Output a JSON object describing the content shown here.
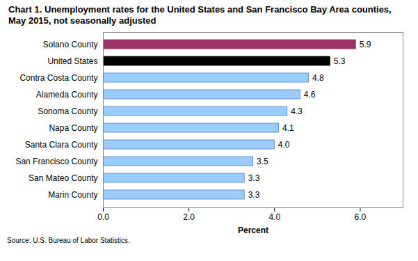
{
  "chart_data": {
    "type": "bar",
    "orientation": "horizontal",
    "title": "Chart 1. Unemployment rates for the United States and San Francisco Bay Area counties, May 2015, not seasonally adjusted",
    "caption": "Source: U.S. Bureau of Labor Statistics.",
    "x_label": "Percent",
    "categories": [
      "Solano County",
      "United States",
      "Contra Costa County",
      "Alameda County",
      "Sonoma County",
      "Napa County",
      "Santa Clara County",
      "San Francisco County",
      "San Mateo County",
      "Marin County"
    ],
    "values": [
      5.9,
      5.3,
      4.8,
      4.6,
      4.3,
      4.1,
      4.0,
      3.5,
      3.3,
      3.3
    ],
    "value_labels": [
      "5.9",
      "5.3",
      "4.8",
      "4.6",
      "4.3",
      "4.1",
      "4.0",
      "3.5",
      "3.3",
      "3.3"
    ],
    "colors": [
      "#993366",
      "#000000",
      "#99ccff",
      "#99ccff",
      "#99ccff",
      "#99ccff",
      "#99ccff",
      "#99ccff",
      "#99ccff",
      "#99ccff"
    ],
    "data_labels": true,
    "grid": false,
    "xlim": [
      0,
      7
    ],
    "xticks": [
      {
        "value": 0,
        "label": "0.0"
      },
      {
        "value": 2,
        "label": "2.0"
      },
      {
        "value": 4,
        "label": "4.0"
      },
      {
        "value": 6,
        "label": "6.0"
      }
    ]
  }
}
